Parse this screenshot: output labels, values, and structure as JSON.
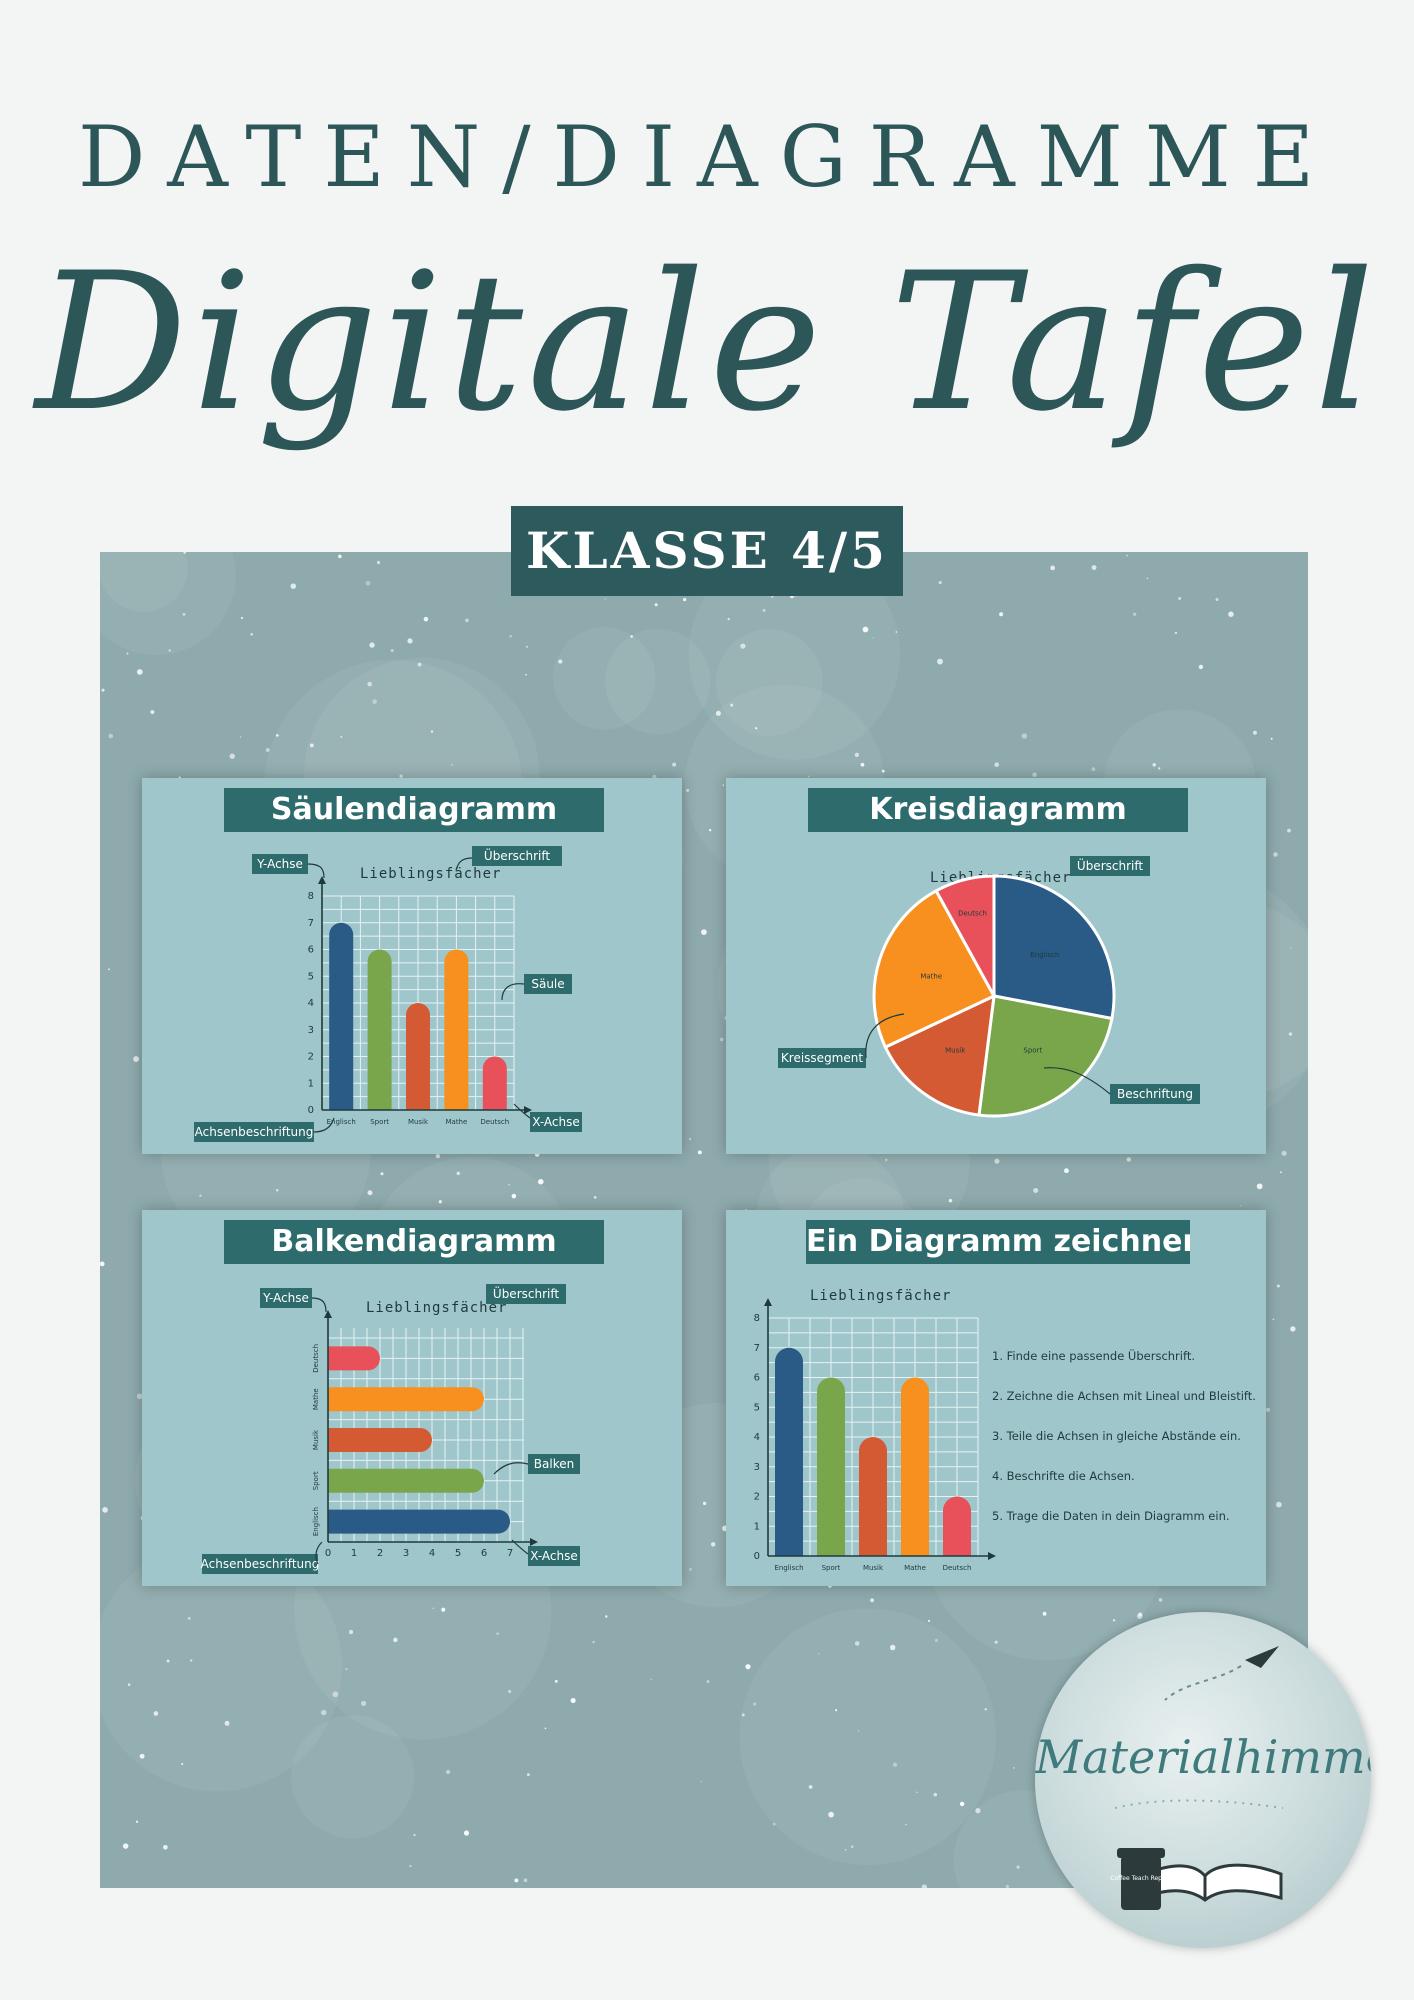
{
  "header": {
    "title_top": "DATEN/DIAGRAMME",
    "title_script": "Digitale Tafel",
    "badge": "KLASSE 4/5"
  },
  "colors": {
    "title": "#2d5658",
    "card_bg": "#9fc6cb",
    "header_bg": "#2d6b6d",
    "englisch": "#2a5a86",
    "sport": "#7aa64b",
    "musik": "#d35a33",
    "mathe": "#f7901e",
    "deutsch": "#e8505a"
  },
  "cards": {
    "saeulen": {
      "title": "Säulendiagramm",
      "chart_title": "Lieblingsfächer",
      "label_y": "Y-Achse",
      "label_ueberschrift": "Überschrift",
      "label_saeule": "Säule",
      "label_x": "X-Achse",
      "label_achsen": "Achsenbeschriftung"
    },
    "kreis": {
      "title": "Kreisdiagramm",
      "chart_title": "Lieblingsfächer",
      "label_ueberschrift": "Überschrift",
      "label_segment": "Kreissegment",
      "label_beschriftung": "Beschriftung"
    },
    "balken": {
      "title": "Balkendiagramm",
      "chart_title": "Lieblingsfächer",
      "label_y": "Y-Achse",
      "label_ueberschrift": "Überschrift",
      "label_balken": "Balken",
      "label_x": "X-Achse",
      "label_achsen": "Achsenbeschriftung"
    },
    "zeichnen": {
      "title": "Ein Diagramm zeichnen",
      "chart_title": "Lieblingsfächer",
      "steps": [
        "1. Finde eine passende Überschrift.",
        "2. Zeichne die Achsen mit Lineal und Bleistift.",
        "3. Teile die Achsen in gleiche Abstände ein.",
        "4. Beschrifte die Achsen.",
        "5. Trage die Daten in dein Diagramm ein."
      ]
    }
  },
  "chart_data": {
    "type": "bar",
    "title": "Lieblingsfächer",
    "categories": [
      "Englisch",
      "Sport",
      "Musik",
      "Mathe",
      "Deutsch"
    ],
    "values": [
      7,
      6,
      4,
      6,
      2
    ],
    "ylim": [
      0,
      8
    ],
    "xlim_horizontal": [
      0,
      7
    ],
    "yticks": [
      0,
      1,
      2,
      3,
      4,
      5,
      6,
      7,
      8
    ],
    "xticks_horizontal": [
      0,
      1,
      2,
      3,
      4,
      5,
      6,
      7
    ]
  },
  "logo": {
    "text": "Materialhimmel",
    "cup_text": "Coffee Teach Repeat"
  }
}
